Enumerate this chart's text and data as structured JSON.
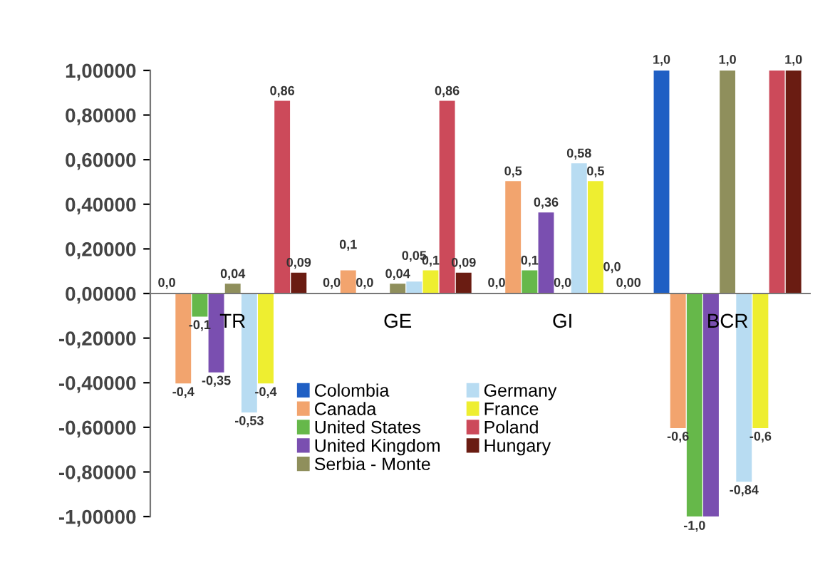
{
  "chart_data": {
    "type": "bar",
    "categories": [
      "TR",
      "GE",
      "GI",
      "BCR"
    ],
    "series": [
      {
        "name": "Colombia",
        "color": "#1f5fc4",
        "values": [
          0.0,
          0.0,
          0.0,
          1.0
        ],
        "value_labels": [
          "0,0",
          "0,0",
          "0,0",
          "1,0"
        ]
      },
      {
        "name": "Canada",
        "color": "#f2a46e",
        "values": [
          -0.4,
          0.1,
          0.5,
          -0.6
        ],
        "value_labels": [
          "-0,4",
          "0,1",
          "0,5",
          "-0,6"
        ]
      },
      {
        "name": "United States",
        "color": "#66b84a",
        "values": [
          -0.1,
          0.0,
          0.1,
          -1.0
        ],
        "value_labels": [
          "-0,1",
          "0,0",
          "0,1",
          "-1,0"
        ]
      },
      {
        "name": "United Kingdom",
        "color": "#7a4fb0",
        "values": [
          -0.35,
          0.0,
          0.36,
          -1.0
        ],
        "value_labels": [
          "-0,35",
          null,
          "0,36",
          null
        ]
      },
      {
        "name": "Serbia - Monte",
        "color": "#8f8f5c",
        "values": [
          0.04,
          0.04,
          0.0,
          1.0
        ],
        "value_labels": [
          "0,04",
          "0,04",
          "0,0",
          "1,0"
        ]
      },
      {
        "name": "Germany",
        "color": "#b8dcf2",
        "values": [
          -0.53,
          0.05,
          0.58,
          -0.84
        ],
        "value_labels": [
          "-0,53",
          "0,05",
          "0,58",
          "-0,84"
        ]
      },
      {
        "name": "France",
        "color": "#eeee30",
        "values": [
          -0.4,
          0.1,
          0.5,
          -0.6
        ],
        "value_labels": [
          "-0,4",
          "0,1",
          "0,5",
          "-0,6"
        ]
      },
      {
        "name": "Poland",
        "color": "#cc4a5a",
        "values": [
          0.86,
          0.86,
          0.0,
          1.0
        ],
        "value_labels": [
          "0,86",
          "0,86",
          "0,0",
          null
        ]
      },
      {
        "name": "Hungary",
        "color": "#6a1c12",
        "values": [
          0.09,
          0.09,
          0.0,
          1.0
        ],
        "value_labels": [
          "0,09",
          "0,09",
          "0,00",
          "1,0"
        ]
      }
    ],
    "ylim": [
      -1.0,
      1.0
    ],
    "yticks": [
      {
        "value": -1.0,
        "label": "-1,00000"
      },
      {
        "value": -0.8,
        "label": "-0,80000"
      },
      {
        "value": -0.6,
        "label": "-0,60000"
      },
      {
        "value": -0.4,
        "label": "-0,40000"
      },
      {
        "value": -0.2,
        "label": "-0,20000"
      },
      {
        "value": 0.0,
        "label": "0,00000"
      },
      {
        "value": 0.2,
        "label": "0,20000"
      },
      {
        "value": 0.4,
        "label": "0,40000"
      },
      {
        "value": 0.6,
        "label": "0,60000"
      },
      {
        "value": 0.8,
        "label": "0,80000"
      },
      {
        "value": 1.0,
        "label": "1,00000"
      }
    ],
    "grid": false,
    "legend": "bottom"
  }
}
